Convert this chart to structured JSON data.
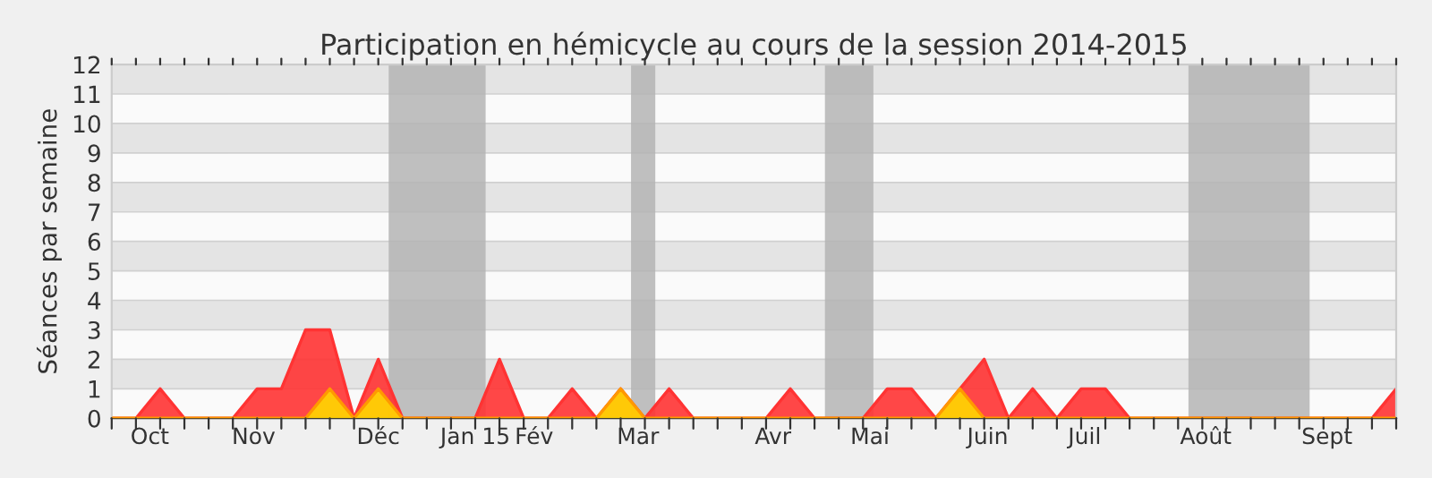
{
  "chart_data": {
    "type": "area",
    "title": "Participation en hémicycle au cours de la session 2014-2015",
    "ylabel": "Séances par semaine",
    "x": [
      "2014-10-06",
      "2014-10-13",
      "2014-10-20",
      "2014-10-27",
      "2014-11-03",
      "2014-11-10",
      "2014-11-17",
      "2014-11-24",
      "2014-12-01",
      "2014-12-08",
      "2014-12-15",
      "2014-12-22",
      "2014-12-29",
      "2015-01-05",
      "2015-01-12",
      "2015-01-19",
      "2015-01-26",
      "2015-02-02",
      "2015-02-09",
      "2015-02-16",
      "2015-02-23",
      "2015-03-02",
      "2015-03-09",
      "2015-03-16",
      "2015-03-23",
      "2015-03-30",
      "2015-04-06",
      "2015-04-13",
      "2015-04-20",
      "2015-04-27",
      "2015-05-04",
      "2015-05-11",
      "2015-05-18",
      "2015-05-25",
      "2015-06-01",
      "2015-06-08",
      "2015-06-15",
      "2015-06-22",
      "2015-06-29",
      "2015-07-06",
      "2015-07-13",
      "2015-07-20",
      "2015-07-27",
      "2015-08-03",
      "2015-08-10",
      "2015-08-17",
      "2015-08-24",
      "2015-08-31",
      "2015-09-07",
      "2015-09-14",
      "2015-09-21",
      "2015-09-28",
      "2015-10-05",
      "2015-10-12"
    ],
    "series": [
      {
        "color": "#ff3333",
        "values": [
          0,
          0,
          1,
          0,
          0,
          0,
          1,
          1,
          3,
          3,
          0,
          2,
          0,
          0,
          0,
          0,
          2,
          0,
          0,
          1,
          0,
          1,
          0,
          1,
          0,
          0,
          0,
          0,
          1,
          0,
          0,
          0,
          1,
          1,
          0,
          1,
          2,
          0,
          1,
          0,
          1,
          1,
          0,
          0,
          0,
          0,
          0,
          0,
          0,
          0,
          0,
          0,
          0,
          1
        ]
      },
      {
        "color": "#ffd700",
        "values": [
          0,
          0,
          0,
          0,
          0,
          0,
          0,
          0,
          0,
          1,
          0,
          1,
          0,
          0,
          0,
          0,
          0,
          0,
          0,
          0,
          0,
          1,
          0,
          0,
          0,
          0,
          0,
          0,
          0,
          0,
          0,
          0,
          0,
          0,
          0,
          1,
          0,
          0,
          0,
          0,
          0,
          0,
          0,
          0,
          0,
          0,
          0,
          0,
          0,
          0,
          0,
          0,
          0,
          0
        ]
      }
    ],
    "xlim": [
      "2014-10-06",
      "2015-10-12"
    ],
    "xticks": [
      {
        "value": "2014-10-17",
        "label": "Oct"
      },
      {
        "value": "2014-11-16",
        "label": "Nov"
      },
      {
        "value": "2014-12-22",
        "label": "Déc"
      },
      {
        "value": "2015-01-19",
        "label": "Jan 15"
      },
      {
        "value": "2015-02-05",
        "label": "Fév"
      },
      {
        "value": "2015-03-07",
        "label": "Mar"
      },
      {
        "value": "2015-04-15",
        "label": "Avr"
      },
      {
        "value": "2015-05-13",
        "label": "Mai"
      },
      {
        "value": "2015-06-16",
        "label": "Juin"
      },
      {
        "value": "2015-07-14",
        "label": "Juil"
      },
      {
        "value": "2015-08-18",
        "label": "Août"
      },
      {
        "value": "2015-09-22",
        "label": "Sept"
      }
    ],
    "ylim": [
      0,
      12
    ],
    "yticks": [
      0,
      1,
      2,
      3,
      4,
      5,
      6,
      7,
      8,
      9,
      10,
      11,
      12
    ],
    "bands": [
      {
        "axis": "x",
        "from": "2014-12-25",
        "to": "2015-01-22",
        "color": "#b4b4b4"
      },
      {
        "axis": "x",
        "from": "2015-03-05",
        "to": "2015-03-12",
        "color": "#b4b4b4"
      },
      {
        "axis": "x",
        "from": "2015-04-30",
        "to": "2015-05-14",
        "color": "#b4b4b4"
      },
      {
        "axis": "x",
        "from": "2015-08-13",
        "to": "2015-09-17",
        "color": "#b4b4b4"
      }
    ],
    "grid": "y"
  }
}
